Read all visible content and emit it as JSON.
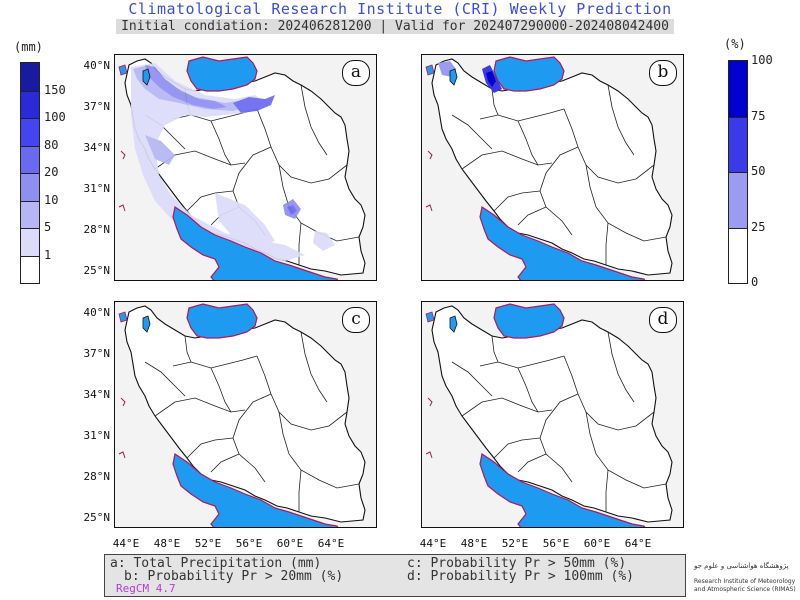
{
  "header": {
    "title": "Climatological Research Institute (CRI) Weekly Prediction",
    "subtitle": "Initial condiation: 202406281200 | Valid for 202407290000-202408042400"
  },
  "left_colorbar": {
    "unit": "(mm)",
    "ticks": [
      "150",
      "100",
      "80",
      "20",
      "10",
      "5",
      "1"
    ],
    "colors": [
      "#1a1aa0",
      "#2a2ad8",
      "#4444f0",
      "#6a6af0",
      "#8f8ff2",
      "#b6b6f4",
      "#dcdcfa",
      "#ffffff"
    ]
  },
  "right_colorbar": {
    "unit": "(%)",
    "ticks": [
      "100",
      "75",
      "50",
      "25",
      "0"
    ],
    "colors": [
      "#0000d0",
      "#3a3ae8",
      "#9b9bf0",
      "#ffffff"
    ]
  },
  "panels": [
    {
      "letter": "a"
    },
    {
      "letter": "b"
    },
    {
      "letter": "c"
    },
    {
      "letter": "d"
    }
  ],
  "axes": {
    "lat_labels": [
      "40°N",
      "37°N",
      "34°N",
      "31°N",
      "28°N",
      "25°N"
    ],
    "lon_labels": [
      "44°E",
      "48°E",
      "52°E",
      "56°E",
      "60°E",
      "64°E"
    ]
  },
  "legend": {
    "a": "a: Total Precipitation (mm)",
    "b": "b: Probability Pr > 20mm (%)",
    "c": "c: Probability Pr > 50mm (%)",
    "d": "d: Probability Pr > 100mm (%)",
    "model": "RegCM 4.7"
  },
  "logo": {
    "fa": "پژوهشگاه هواشناسی و علوم جو",
    "en_line1": "Research Institute of Meteorology",
    "en_line2": "and Atmospheric Science (RIMAS)"
  },
  "colors": {
    "water": "#1e9bf0",
    "coast": "#b0185a",
    "land_outside": "#f3f3f3"
  }
}
